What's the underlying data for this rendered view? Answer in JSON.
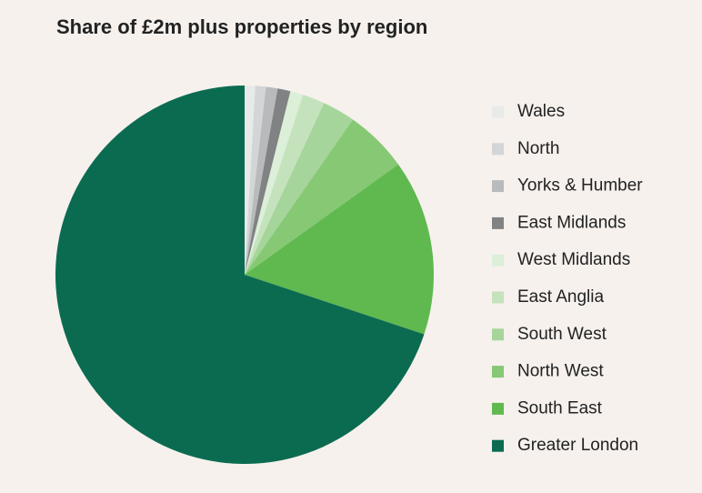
{
  "chart_data": {
    "type": "pie",
    "title": "Share of £2m plus properties by region",
    "categories": [
      "Wales",
      "North",
      "Yorks & Humber",
      "East Midlands",
      "West Midlands",
      "East Anglia",
      "South West",
      "North West",
      "South East",
      "Greater London"
    ],
    "values": [
      0.9,
      0.9,
      1.0,
      1.1,
      1.1,
      1.9,
      2.8,
      5.4,
      15.0,
      69.9
    ],
    "colors": [
      "#e8eaea",
      "#d3d5d7",
      "#b8babc",
      "#808284",
      "#dcefd8",
      "#c4e3bc",
      "#a6d59b",
      "#86c874",
      "#5fb94f",
      "#0b6b50"
    ],
    "legend": "right"
  }
}
